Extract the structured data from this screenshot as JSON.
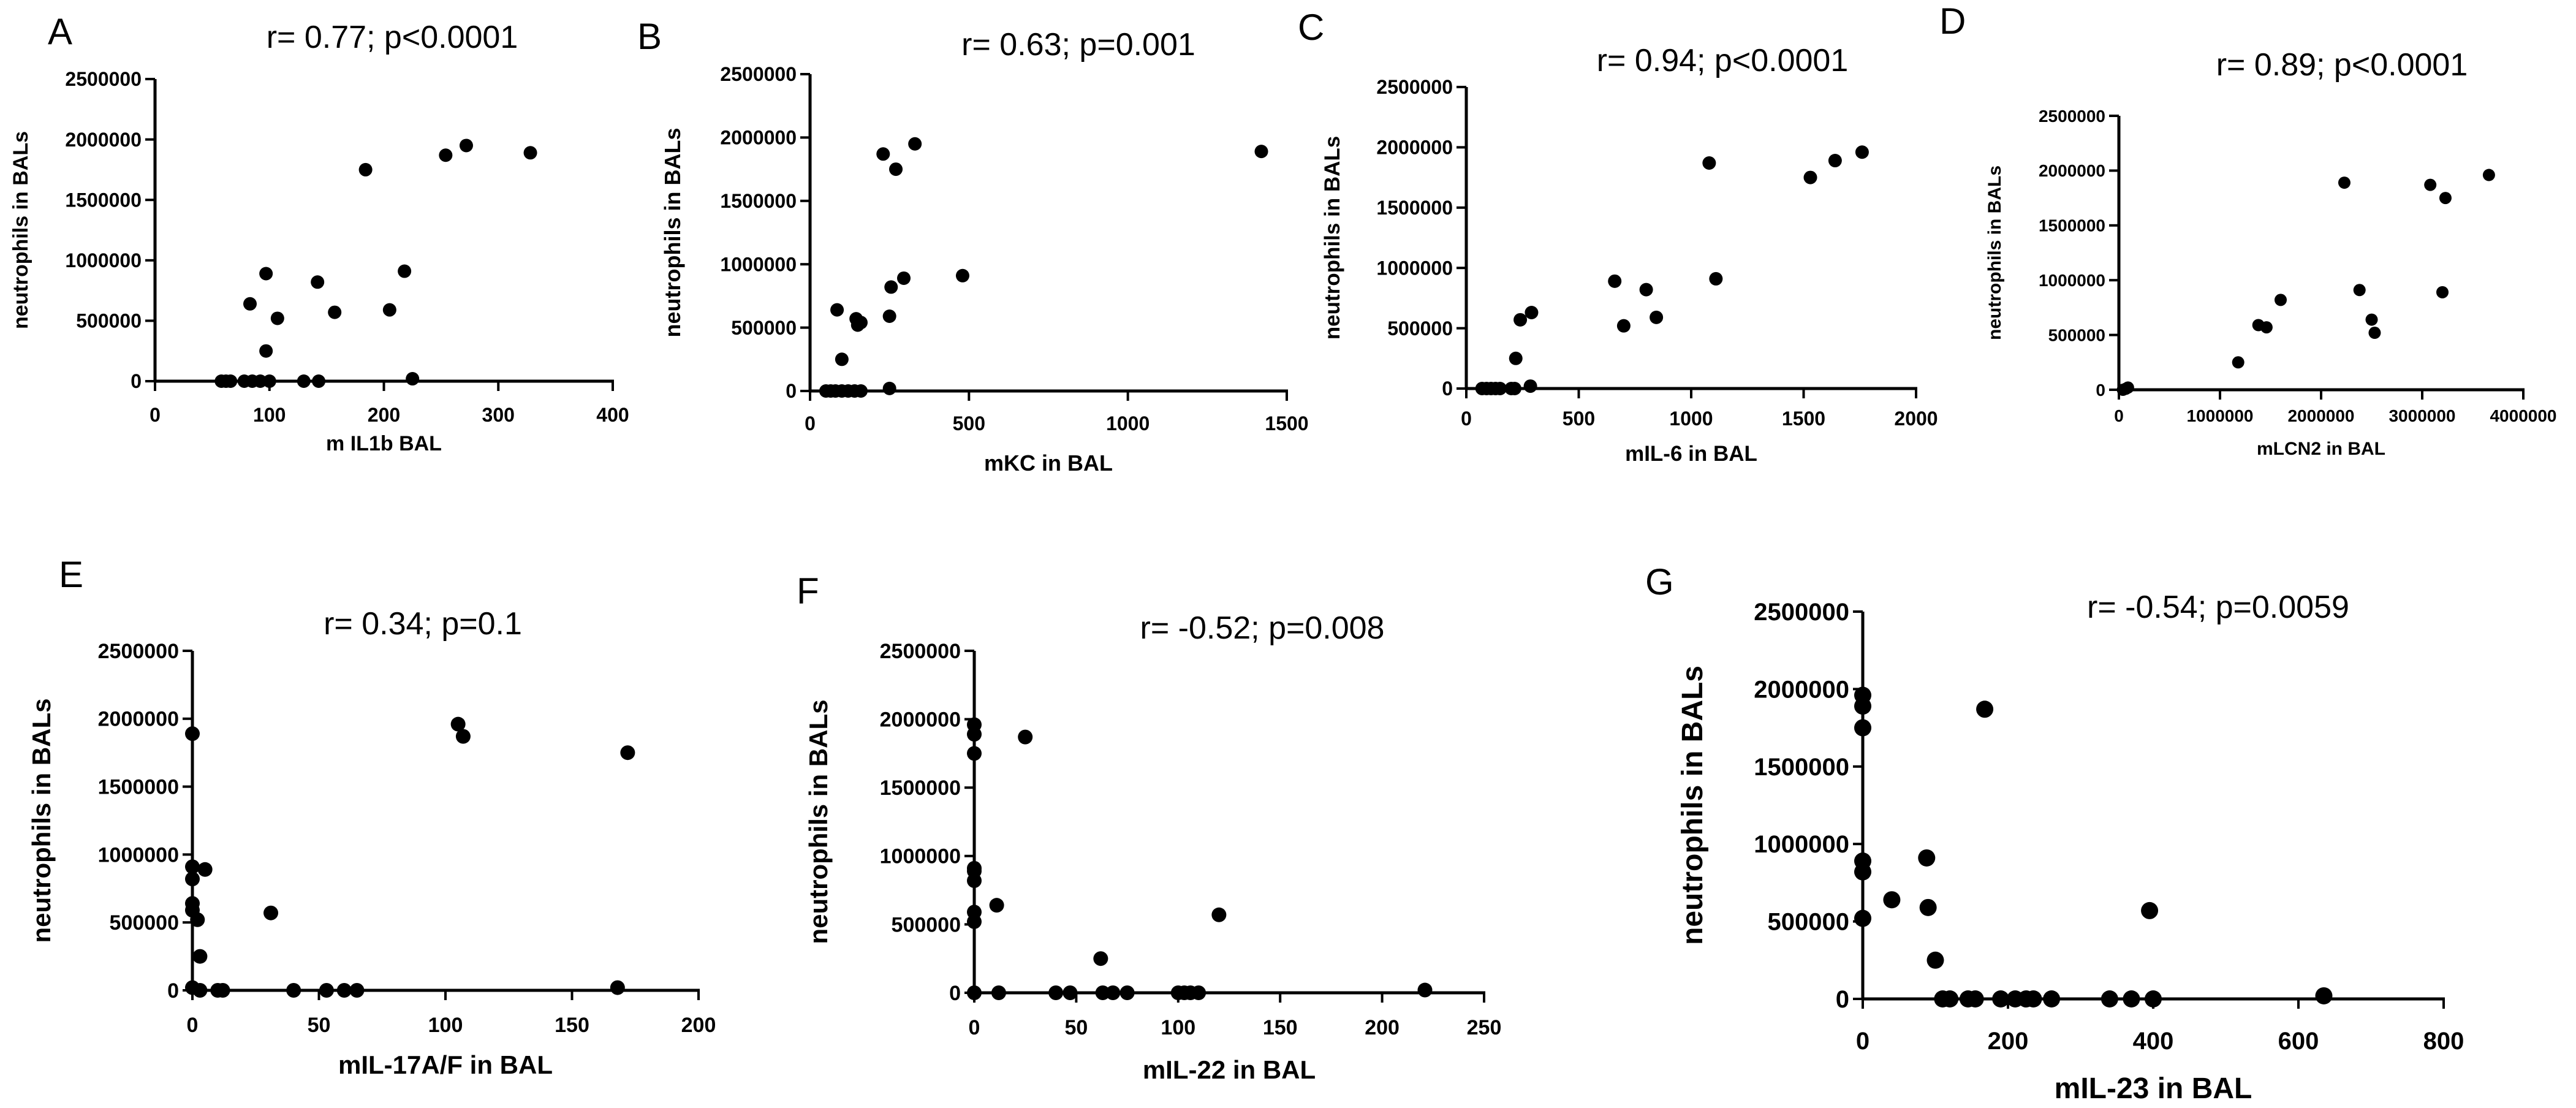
{
  "chart_data": [
    {
      "type": "scatter",
      "panel": "A",
      "title": "r= 0.77; p<0.0001",
      "xlabel": "m IL1b BAL",
      "ylabel": "neutrophils in BALs",
      "xlim": [
        0,
        400
      ],
      "ylim": [
        0,
        2500000
      ],
      "xticks": [
        0,
        100,
        200,
        300,
        400
      ],
      "yticks": [
        0,
        500000,
        1000000,
        1500000,
        2000000,
        2500000
      ],
      "xtick_labels": [
        "0",
        "100",
        "200",
        "300",
        "400"
      ],
      "ytick_labels": [
        "0",
        "500000",
        "1000000",
        "1500000",
        "2000000",
        "2500000"
      ],
      "points": [
        [
          58,
          0
        ],
        [
          62,
          0
        ],
        [
          66,
          0
        ],
        [
          78,
          0
        ],
        [
          85,
          0
        ],
        [
          92,
          0
        ],
        [
          100,
          0
        ],
        [
          130,
          0
        ],
        [
          143,
          0
        ],
        [
          83,
          640000
        ],
        [
          97,
          890000
        ],
        [
          97,
          250000
        ],
        [
          107,
          520000
        ],
        [
          142,
          820000
        ],
        [
          157,
          570000
        ],
        [
          184,
          1750000
        ],
        [
          205,
          590000
        ],
        [
          218,
          910000
        ],
        [
          225,
          20000
        ],
        [
          254,
          1870000
        ],
        [
          272,
          1950000
        ],
        [
          328,
          1890000
        ]
      ]
    },
    {
      "type": "scatter",
      "panel": "B",
      "title": "r= 0.63; p=0.001",
      "xlabel": "mKC in BAL",
      "ylabel": "neutrophils in BALs",
      "xlim": [
        0,
        1500
      ],
      "ylim": [
        0,
        2500000
      ],
      "xticks": [
        0,
        500,
        1000,
        1500
      ],
      "yticks": [
        0,
        500000,
        1000000,
        1500000,
        2000000,
        2500000
      ],
      "xtick_labels": [
        "0",
        "500",
        "1000",
        "1500"
      ],
      "ytick_labels": [
        "0",
        "500000",
        "1000000",
        "1500000",
        "2000000",
        "2500000"
      ],
      "points": [
        [
          50,
          0
        ],
        [
          65,
          0
        ],
        [
          80,
          0
        ],
        [
          100,
          0
        ],
        [
          120,
          0
        ],
        [
          140,
          0
        ],
        [
          160,
          0
        ],
        [
          85,
          640000
        ],
        [
          100,
          250000
        ],
        [
          145,
          570000
        ],
        [
          150,
          520000
        ],
        [
          160,
          540000
        ],
        [
          250,
          20000
        ],
        [
          250,
          590000
        ],
        [
          255,
          820000
        ],
        [
          270,
          1750000
        ],
        [
          295,
          890000
        ],
        [
          230,
          1870000
        ],
        [
          330,
          1950000
        ],
        [
          480,
          910000
        ],
        [
          1420,
          1890000
        ]
      ]
    },
    {
      "type": "scatter",
      "panel": "C",
      "title": "r= 0.94; p<0.0001",
      "xlabel": "mIL-6 in BAL",
      "ylabel": "neutrophils in BALs",
      "xlim": [
        0,
        2000
      ],
      "ylim": [
        0,
        2500000
      ],
      "xticks": [
        0,
        500,
        1000,
        1500,
        2000
      ],
      "yticks": [
        0,
        500000,
        1000000,
        1500000,
        2000000,
        2500000
      ],
      "xtick_labels": [
        "0",
        "500",
        "1000",
        "1500",
        "2000"
      ],
      "ytick_labels": [
        "0",
        "500000",
        "1000000",
        "1500000",
        "2000000",
        "2500000"
      ],
      "points": [
        [
          70,
          0
        ],
        [
          90,
          0
        ],
        [
          110,
          0
        ],
        [
          130,
          0
        ],
        [
          150,
          0
        ],
        [
          200,
          0
        ],
        [
          215,
          0
        ],
        [
          220,
          250000
        ],
        [
          240,
          570000
        ],
        [
          290,
          630000
        ],
        [
          285,
          20000
        ],
        [
          660,
          890000
        ],
        [
          700,
          520000
        ],
        [
          800,
          820000
        ],
        [
          845,
          590000
        ],
        [
          1080,
          1870000
        ],
        [
          1110,
          910000
        ],
        [
          1530,
          1750000
        ],
        [
          1640,
          1890000
        ],
        [
          1760,
          1960000
        ]
      ]
    },
    {
      "type": "scatter",
      "panel": "D",
      "title": "r= 0.89; p<0.0001",
      "xlabel": "mLCN2 in BAL",
      "ylabel": "neutrophils in BALs",
      "xlim": [
        0,
        4000000
      ],
      "ylim": [
        0,
        2500000
      ],
      "xticks": [
        0,
        1000000,
        2000000,
        3000000,
        4000000
      ],
      "yticks": [
        0,
        500000,
        1000000,
        1500000,
        2000000,
        2500000
      ],
      "xtick_labels": [
        "0",
        "1000000",
        "2000000",
        "3000000",
        "4000000"
      ],
      "ytick_labels": [
        "0",
        "500000",
        "1000000",
        "1500000",
        "2000000",
        "2500000"
      ],
      "points": [
        [
          40000,
          0
        ],
        [
          70000,
          10000
        ],
        [
          90000,
          20000
        ],
        [
          1180000,
          250000
        ],
        [
          1380000,
          590000
        ],
        [
          1460000,
          570000
        ],
        [
          1600000,
          820000
        ],
        [
          2230000,
          1890000
        ],
        [
          2380000,
          910000
        ],
        [
          2500000,
          640000
        ],
        [
          2530000,
          520000
        ],
        [
          3080000,
          1870000
        ],
        [
          3200000,
          890000
        ],
        [
          3230000,
          1750000
        ],
        [
          3660000,
          1960000
        ]
      ]
    },
    {
      "type": "scatter",
      "panel": "E",
      "title": "r= 0.34; p=0.1",
      "xlabel": "mIL-17A/F in BAL",
      "ylabel": "neutrophils in BALs",
      "xlim": [
        0,
        200
      ],
      "ylim": [
        0,
        2500000
      ],
      "xticks": [
        0,
        50,
        100,
        150,
        200
      ],
      "yticks": [
        0,
        500000,
        1000000,
        1500000,
        2000000,
        2500000
      ],
      "xtick_labels": [
        "0",
        "50",
        "100",
        "150",
        "200"
      ],
      "ytick_labels": [
        "0",
        "500000",
        "1000000",
        "1500000",
        "2000000",
        "2500000"
      ],
      "points": [
        [
          0,
          1890000
        ],
        [
          0,
          910000
        ],
        [
          0,
          820000
        ],
        [
          0,
          640000
        ],
        [
          0,
          590000
        ],
        [
          0,
          20000
        ],
        [
          2,
          520000
        ],
        [
          3,
          250000
        ],
        [
          5,
          890000
        ],
        [
          3,
          0
        ],
        [
          10,
          0
        ],
        [
          12,
          0
        ],
        [
          31,
          570000
        ],
        [
          40,
          0
        ],
        [
          53,
          0
        ],
        [
          60,
          0
        ],
        [
          65,
          0
        ],
        [
          105,
          1960000
        ],
        [
          107,
          1870000
        ],
        [
          168,
          20000
        ],
        [
          172,
          1750000
        ]
      ]
    },
    {
      "type": "scatter",
      "panel": "F",
      "title": "r= -0.52; p=0.008",
      "xlabel": "mIL-22 in BAL",
      "ylabel": "neutrophils in BALs",
      "xlim": [
        0,
        250
      ],
      "ylim": [
        0,
        2500000
      ],
      "xticks": [
        0,
        50,
        100,
        150,
        200,
        250
      ],
      "yticks": [
        0,
        500000,
        1000000,
        1500000,
        2000000,
        2500000
      ],
      "xtick_labels": [
        "0",
        "50",
        "100",
        "150",
        "200",
        "250"
      ],
      "ytick_labels": [
        "0",
        "500000",
        "1000000",
        "1500000",
        "2000000",
        "2500000"
      ],
      "points": [
        [
          0,
          1960000
        ],
        [
          0,
          1890000
        ],
        [
          0,
          1750000
        ],
        [
          0,
          910000
        ],
        [
          0,
          890000
        ],
        [
          0,
          820000
        ],
        [
          0,
          590000
        ],
        [
          0,
          520000
        ],
        [
          0,
          0
        ],
        [
          11,
          640000
        ],
        [
          12,
          0
        ],
        [
          25,
          1870000
        ],
        [
          40,
          0
        ],
        [
          47,
          0
        ],
        [
          62,
          250000
        ],
        [
          63,
          0
        ],
        [
          68,
          0
        ],
        [
          75,
          0
        ],
        [
          100,
          0
        ],
        [
          103,
          0
        ],
        [
          106,
          0
        ],
        [
          110,
          0
        ],
        [
          120,
          570000
        ],
        [
          221,
          20000
        ]
      ]
    },
    {
      "type": "scatter",
      "panel": "G",
      "title": "r= -0.54; p=0.0059",
      "xlabel": "mIL-23 in BAL",
      "ylabel": "neutrophils in BALs",
      "xlim": [
        0,
        800
      ],
      "ylim": [
        0,
        2500000
      ],
      "xticks": [
        0,
        200,
        400,
        600,
        800
      ],
      "yticks": [
        0,
        500000,
        1000000,
        1500000,
        2000000,
        2500000
      ],
      "xtick_labels": [
        "0",
        "200",
        "400",
        "600",
        "800"
      ],
      "ytick_labels": [
        "0",
        "500000",
        "1000000",
        "1500000",
        "2000000",
        "2500000"
      ],
      "points": [
        [
          0,
          1960000
        ],
        [
          0,
          1890000
        ],
        [
          0,
          1750000
        ],
        [
          0,
          890000
        ],
        [
          0,
          820000
        ],
        [
          0,
          520000
        ],
        [
          40,
          640000
        ],
        [
          88,
          910000
        ],
        [
          90,
          590000
        ],
        [
          100,
          250000
        ],
        [
          110,
          0
        ],
        [
          120,
          0
        ],
        [
          145,
          0
        ],
        [
          155,
          0
        ],
        [
          168,
          1870000
        ],
        [
          190,
          0
        ],
        [
          210,
          0
        ],
        [
          225,
          0
        ],
        [
          235,
          0
        ],
        [
          260,
          0
        ],
        [
          340,
          0
        ],
        [
          370,
          0
        ],
        [
          395,
          570000
        ],
        [
          400,
          0
        ],
        [
          635,
          20000
        ]
      ]
    }
  ]
}
